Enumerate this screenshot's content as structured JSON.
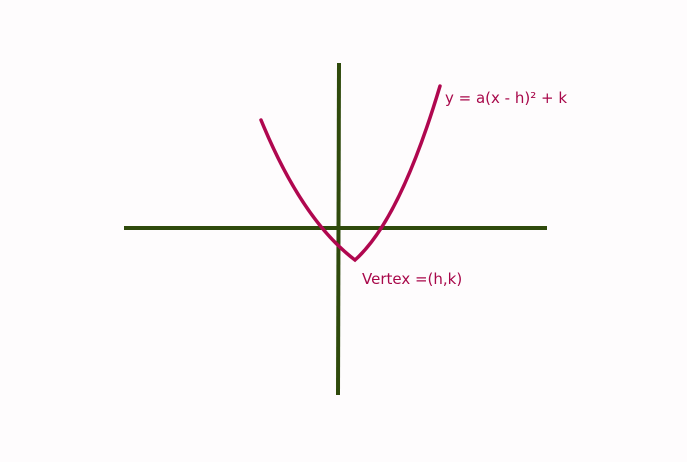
{
  "diagram": {
    "equation": "y = a(x - h)² + k",
    "vertex_label": "Vertex =(h,k)"
  },
  "colors": {
    "background": "#fefcfd",
    "axes": "#2f4a0c",
    "curve": "#b0074f",
    "text": "#a8084a"
  }
}
